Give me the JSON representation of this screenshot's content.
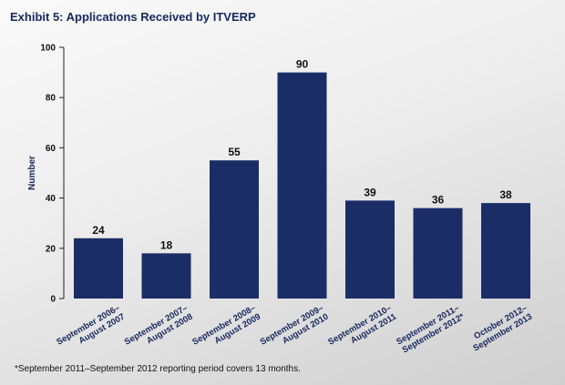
{
  "title": "Exhibit 5: Applications Received by ITVERP",
  "footnote": "*September 2011–September 2012 reporting period covers 13 months.",
  "chart_data": {
    "type": "bar",
    "title": "Exhibit 5: Applications Received by ITVERP",
    "ylabel": "Number",
    "xlabel": "",
    "ylim": [
      0,
      100
    ],
    "yticks": [
      0,
      20,
      40,
      60,
      80,
      100
    ],
    "grid": false,
    "legend": "none",
    "bar_color": "#1b2d66",
    "categories": [
      [
        "September 2006–",
        "August 2007"
      ],
      [
        "September 2007–",
        "August 2008"
      ],
      [
        "September 2008–",
        "August 2009"
      ],
      [
        "September 2009–",
        "August 2010"
      ],
      [
        "September 2010–",
        "August 2011"
      ],
      [
        "September 2011–",
        "September 2012*"
      ],
      [
        "October 2012–",
        "September 2013"
      ]
    ],
    "values": [
      24,
      18,
      55,
      90,
      39,
      36,
      38
    ]
  }
}
